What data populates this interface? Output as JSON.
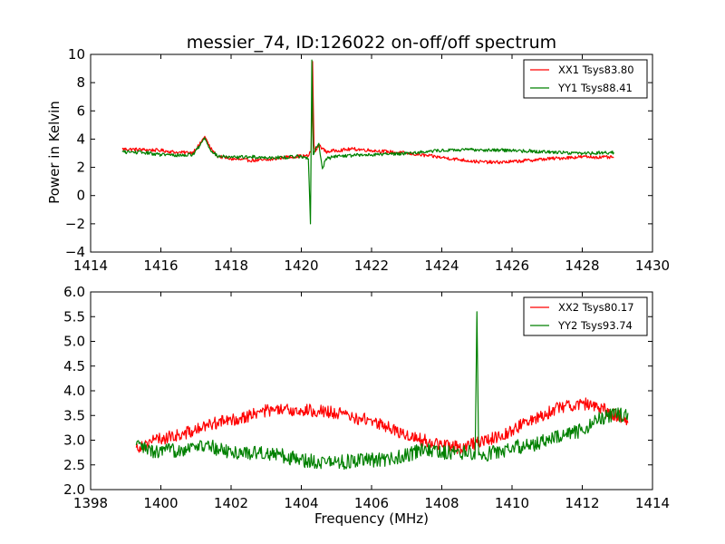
{
  "chart_data": [
    {
      "type": "line",
      "title": "messier_74, ID:126022 on-off/off spectrum",
      "xlabel": "",
      "ylabel": "Power in Kelvin",
      "xlim": [
        1414,
        1430
      ],
      "ylim": [
        -4,
        10
      ],
      "xticks": [
        1414,
        1416,
        1418,
        1420,
        1422,
        1424,
        1426,
        1428,
        1430
      ],
      "yticks": [
        -4,
        -2,
        0,
        2,
        4,
        6,
        8,
        10
      ],
      "xtick_labels": [
        "1414",
        "1416",
        "1418",
        "1420",
        "1422",
        "1424",
        "1426",
        "1428",
        "1430"
      ],
      "ytick_labels": [
        "−4",
        "−2",
        "0",
        "2",
        "4",
        "6",
        "8",
        "10"
      ],
      "grid": false,
      "legend_position": "top-right",
      "series": [
        {
          "name": "XX1 Tsys83.80",
          "color": "#ff0000",
          "noise": 0.12,
          "x": [
            1414.9,
            1415.5,
            1416.0,
            1416.5,
            1416.9,
            1417.1,
            1417.25,
            1417.4,
            1417.6,
            1418.0,
            1418.5,
            1419.0,
            1419.5,
            1420.0,
            1420.2,
            1420.28,
            1420.32,
            1420.36,
            1420.4,
            1420.5,
            1420.7,
            1421.0,
            1421.5,
            1422.0,
            1423.0,
            1424.0,
            1425.0,
            1425.5,
            1426.0,
            1427.0,
            1428.0,
            1428.9
          ],
          "y": [
            3.3,
            3.25,
            3.2,
            3.05,
            3.05,
            3.6,
            4.2,
            3.4,
            2.8,
            2.6,
            2.5,
            2.5,
            2.7,
            2.8,
            2.8,
            3.2,
            9.5,
            3.6,
            3.1,
            3.6,
            3.1,
            3.2,
            3.3,
            3.2,
            3.0,
            2.7,
            2.4,
            2.35,
            2.4,
            2.6,
            2.75,
            2.7
          ]
        },
        {
          "name": "YY1 Tsys88.41",
          "color": "#008000",
          "noise": 0.12,
          "x": [
            1414.9,
            1415.5,
            1416.0,
            1416.5,
            1416.9,
            1417.1,
            1417.25,
            1417.4,
            1417.6,
            1418.0,
            1418.5,
            1419.0,
            1419.5,
            1420.0,
            1420.2,
            1420.26,
            1420.3,
            1420.34,
            1420.4,
            1420.5,
            1420.6,
            1420.7,
            1421.0,
            1422.0,
            1423.0,
            1424.0,
            1425.0,
            1426.0,
            1427.0,
            1428.0,
            1428.9
          ],
          "y": [
            3.1,
            3.05,
            2.9,
            2.85,
            2.9,
            3.5,
            4.1,
            3.3,
            2.8,
            2.7,
            2.75,
            2.7,
            2.7,
            2.8,
            2.6,
            -2.0,
            9.6,
            2.9,
            3.3,
            3.7,
            1.9,
            2.6,
            2.8,
            2.9,
            3.0,
            3.2,
            3.25,
            3.2,
            3.1,
            3.0,
            3.05
          ]
        }
      ]
    },
    {
      "type": "line",
      "title": "",
      "xlabel": "Frequency (MHz)",
      "ylabel": "",
      "xlim": [
        1398,
        1414
      ],
      "ylim": [
        2.0,
        6.0
      ],
      "xticks": [
        1398,
        1400,
        1402,
        1404,
        1406,
        1408,
        1410,
        1412,
        1414
      ],
      "yticks": [
        2.0,
        2.5,
        3.0,
        3.5,
        4.0,
        4.5,
        5.0,
        5.5,
        6.0
      ],
      "xtick_labels": [
        "1398",
        "1400",
        "1402",
        "1404",
        "1406",
        "1408",
        "1410",
        "1412",
        "1414"
      ],
      "ytick_labels": [
        "2.0",
        "2.5",
        "3.0",
        "3.5",
        "4.0",
        "4.5",
        "5.0",
        "5.5",
        "6.0"
      ],
      "grid": false,
      "legend_position": "top-right",
      "series": [
        {
          "name": "XX2 Tsys80.17",
          "color": "#ff0000",
          "noise": 0.13,
          "x": [
            1399.3,
            1399.8,
            1400.5,
            1401.0,
            1401.5,
            1402.0,
            1402.5,
            1403.0,
            1403.5,
            1404.0,
            1404.5,
            1405.0,
            1405.5,
            1406.0,
            1406.5,
            1407.0,
            1407.5,
            1408.0,
            1408.5,
            1409.0,
            1409.5,
            1410.0,
            1410.5,
            1411.0,
            1411.5,
            1412.0,
            1412.5,
            1413.0,
            1413.3
          ],
          "y": [
            2.85,
            3.0,
            3.1,
            3.2,
            3.35,
            3.4,
            3.5,
            3.6,
            3.6,
            3.6,
            3.6,
            3.55,
            3.45,
            3.4,
            3.25,
            3.1,
            3.0,
            2.9,
            2.85,
            2.95,
            3.05,
            3.2,
            3.4,
            3.55,
            3.7,
            3.75,
            3.65,
            3.5,
            3.35
          ]
        },
        {
          "name": "YY2 Tsys93.74",
          "color": "#008000",
          "noise": 0.15,
          "x": [
            1399.3,
            1399.8,
            1400.5,
            1401.0,
            1401.5,
            1402.0,
            1403.0,
            1404.0,
            1405.0,
            1406.0,
            1406.5,
            1407.0,
            1407.5,
            1408.0,
            1408.5,
            1408.95,
            1409.0,
            1409.05,
            1409.1,
            1409.5,
            1410.0,
            1410.5,
            1411.0,
            1411.5,
            1412.0,
            1412.5,
            1413.0,
            1413.3
          ],
          "y": [
            2.9,
            2.75,
            2.8,
            2.9,
            2.85,
            2.75,
            2.75,
            2.6,
            2.55,
            2.6,
            2.6,
            2.7,
            2.8,
            2.75,
            2.75,
            2.75,
            5.6,
            2.7,
            2.7,
            2.75,
            2.85,
            2.9,
            3.0,
            3.1,
            3.2,
            3.45,
            3.5,
            3.55
          ]
        }
      ]
    }
  ]
}
